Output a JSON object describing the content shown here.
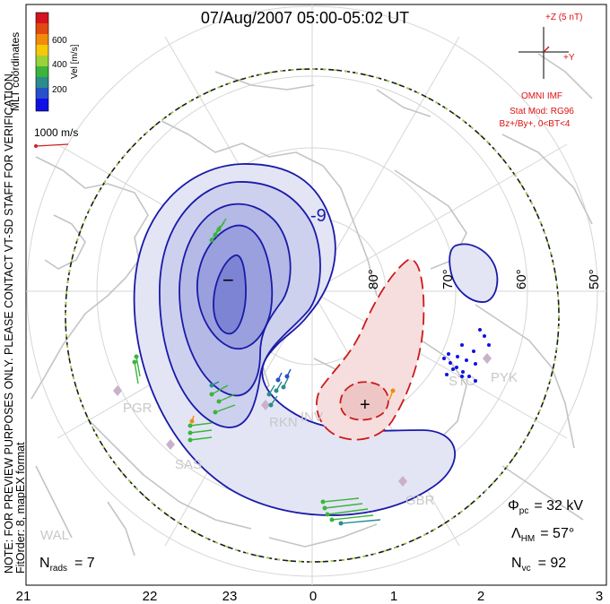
{
  "title": "07/Aug/2007 05:00-05:02 UT",
  "side_note": "NOTE: FOR PREVIEW PURPOSES ONLY. PLEASE CONTACT VT-SD STAFF FOR VERIFICATION.",
  "fit_order": "FitOrder: 8,  mapEX format",
  "coords_label": "MLT coordinates",
  "colorbar": {
    "label": "Vel [m/s]",
    "ticks": [
      "600",
      "400",
      "200"
    ],
    "colors": [
      "#d2141e",
      "#e04a10",
      "#f08c0a",
      "#f7c80a",
      "#9ad238",
      "#3cb43c",
      "#2a8c8c",
      "#2850c8",
      "#1010e6"
    ]
  },
  "scale_vector": {
    "label": "1000 m/s",
    "color": "#cc2222"
  },
  "imf": {
    "bz_label": "+Z (5 nT)",
    "by_label": "+Y",
    "source": "OMNI IMF",
    "stat_mod": "Stat Mod: RG96",
    "condition": "Bz+/By+, 0<BT<4",
    "color": "#dd1111"
  },
  "lat_labels": [
    "80°",
    "70°",
    "60°",
    "50°"
  ],
  "mlt_labels": [
    "21",
    "22",
    "23",
    "0",
    "1",
    "2",
    "3"
  ],
  "stations": [
    "PGR",
    "RKN",
    "SAS",
    "INV",
    "STO",
    "PYK",
    "WAL",
    "GBR"
  ],
  "contour_labels": {
    "neg_value": "-9",
    "neg_cell": "−",
    "pos_cell": "+"
  },
  "stats": {
    "phi_symbol": "Φ",
    "phi_sub": "pc",
    "phi_value": "= 32 kV",
    "lambda_symbol": "Λ",
    "lambda_sub": "HM",
    "lambda_value": "= 57°",
    "nvc_symbol": "N",
    "nvc_sub": "vc",
    "nvc_value": "= 92",
    "nrads_symbol": "N",
    "nrads_sub": "rads",
    "nrads_value": "= 7"
  },
  "colors": {
    "negative_contour": "#1a1aa8",
    "positive_contour": "#cc1a1a",
    "negative_fill": "#e3e5f5",
    "positive_fill": "#f6dede",
    "coastline": "#c4c4c4",
    "heppner_maynard": "#1a1a1a"
  }
}
